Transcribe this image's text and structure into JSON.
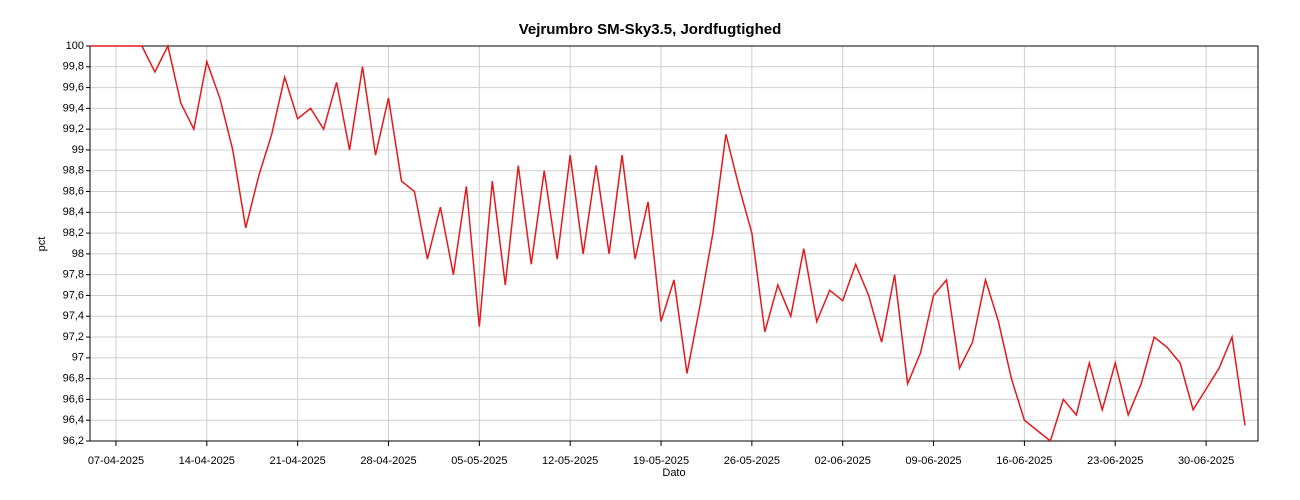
{
  "chart_data": {
    "type": "line",
    "title": "Vejrumbro SM-Sky3.5, Jordfugtighed",
    "x_label": "Dato",
    "y_label": "pct",
    "x": [
      "05-04-2025",
      "06-04-2025",
      "07-04-2025",
      "08-04-2025",
      "09-04-2025",
      "10-04-2025",
      "11-04-2025",
      "12-04-2025",
      "13-04-2025",
      "14-04-2025",
      "15-04-2025",
      "16-04-2025",
      "17-04-2025",
      "18-04-2025",
      "19-04-2025",
      "20-04-2025",
      "21-04-2025",
      "22-04-2025",
      "23-04-2025",
      "24-04-2025",
      "25-04-2025",
      "26-04-2025",
      "27-04-2025",
      "28-04-2025",
      "29-04-2025",
      "30-04-2025",
      "01-05-2025",
      "02-05-2025",
      "03-05-2025",
      "04-05-2025",
      "05-05-2025",
      "06-05-2025",
      "07-05-2025",
      "08-05-2025",
      "09-05-2025",
      "10-05-2025",
      "11-05-2025",
      "12-05-2025",
      "13-05-2025",
      "14-05-2025",
      "15-05-2025",
      "16-05-2025",
      "17-05-2025",
      "18-05-2025",
      "19-05-2025",
      "20-05-2025",
      "21-05-2025",
      "22-05-2025",
      "23-05-2025",
      "24-05-2025",
      "25-05-2025",
      "26-05-2025",
      "27-05-2025",
      "28-05-2025",
      "29-05-2025",
      "30-05-2025",
      "31-05-2025",
      "01-06-2025",
      "02-06-2025",
      "03-06-2025",
      "04-06-2025",
      "05-06-2025",
      "06-06-2025",
      "07-06-2025",
      "08-06-2025",
      "09-06-2025",
      "10-06-2025",
      "11-06-2025",
      "12-06-2025",
      "13-06-2025",
      "14-06-2025",
      "15-06-2025",
      "16-06-2025",
      "17-06-2025",
      "18-06-2025",
      "19-06-2025",
      "20-06-2025",
      "21-06-2025",
      "22-06-2025",
      "23-06-2025",
      "24-06-2025",
      "25-06-2025",
      "26-06-2025",
      "27-06-2025",
      "28-06-2025",
      "29-06-2025",
      "30-06-2025",
      "01-07-2025",
      "02-07-2025",
      "03-07-2025"
    ],
    "values": [
      100,
      100,
      100,
      100,
      100,
      99.75,
      100,
      99.45,
      99.2,
      99.85,
      99.5,
      99.0,
      98.25,
      98.75,
      99.15,
      99.7,
      99.3,
      99.4,
      99.2,
      99.65,
      99.0,
      99.8,
      98.95,
      99.5,
      98.7,
      98.6,
      97.95,
      98.45,
      97.8,
      98.65,
      97.3,
      98.7,
      97.7,
      98.85,
      97.9,
      98.8,
      97.95,
      98.95,
      98.0,
      98.85,
      98.0,
      98.95,
      97.95,
      98.5,
      97.35,
      97.75,
      96.85,
      97.5,
      98.2,
      99.15,
      98.65,
      98.2,
      97.25,
      97.7,
      97.4,
      98.05,
      97.35,
      97.65,
      97.55,
      97.9,
      97.6,
      97.15,
      97.8,
      96.75,
      97.05,
      97.6,
      97.75,
      96.9,
      97.15,
      97.75,
      97.35,
      96.8,
      96.4,
      96.3,
      96.2,
      96.6,
      96.45,
      96.95,
      96.5,
      96.95,
      96.45,
      96.75,
      97.2,
      97.1,
      96.95,
      96.5,
      96.7,
      96.9,
      97.2,
      96.35
    ],
    "color": "#e31a1c",
    "xlim": [
      "05-04-2025",
      "04-07-2025"
    ],
    "xticks": [
      "07-04-2025",
      "14-04-2025",
      "21-04-2025",
      "28-04-2025",
      "05-05-2025",
      "12-05-2025",
      "19-05-2025",
      "26-05-2025",
      "02-06-2025",
      "09-06-2025",
      "16-06-2025",
      "23-06-2025",
      "30-06-2025"
    ],
    "ylim": [
      96.2,
      100
    ],
    "yticks": [
      {
        "value": 96.2,
        "label": "96,2"
      },
      {
        "value": 96.4,
        "label": "96,4"
      },
      {
        "value": 96.6,
        "label": "96,6"
      },
      {
        "value": 96.8,
        "label": "96,8"
      },
      97,
      {
        "value": 97.2,
        "label": "97,2"
      },
      {
        "value": 97.4,
        "label": "97,4"
      },
      {
        "value": 97.6,
        "label": "97,6"
      },
      {
        "value": 97.8,
        "label": "97,8"
      },
      98,
      {
        "value": 98.2,
        "label": "98,2"
      },
      {
        "value": 98.4,
        "label": "98,4"
      },
      {
        "value": 98.6,
        "label": "98,6"
      },
      {
        "value": 98.8,
        "label": "98,8"
      },
      99,
      {
        "value": 99.2,
        "label": "99,2"
      },
      {
        "value": 99.4,
        "label": "99,4"
      },
      {
        "value": 99.6,
        "label": "99,6"
      },
      {
        "value": 99.8,
        "label": "99,8"
      },
      100
    ],
    "grid": true
  }
}
